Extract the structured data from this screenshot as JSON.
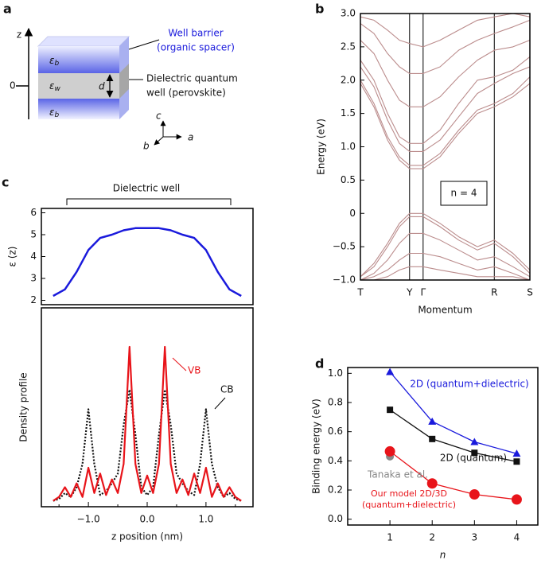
{
  "diagram": {
    "panel": "a",
    "z_axis": "z",
    "origin": "0",
    "layers": [
      {
        "symbol": "ε",
        "sub": "b"
      },
      {
        "symbol": "ε",
        "sub": "w"
      },
      {
        "symbol": "ε",
        "sub": "b"
      }
    ],
    "thickness": "d",
    "barrier_label": [
      "Well barrier",
      "(organic spacer)"
    ],
    "well_label": [
      "Dielectric quantum",
      "well (perovskite)"
    ],
    "axes": [
      "c",
      "b",
      "a"
    ]
  },
  "chart_data": [
    {
      "type": "line",
      "panel": "b",
      "xlabel": "Momentum",
      "ylabel": "Energy (eV)",
      "annotation": "n = 4",
      "color": "#bb8c8c",
      "grid": "x",
      "xlim": [
        0,
        1
      ],
      "xticks": [
        {
          "value": 0,
          "label": "T"
        },
        {
          "value": 0.29,
          "label": "Y"
        },
        {
          "value": 0.37,
          "label": "Γ"
        },
        {
          "value": 0.79,
          "label": "R"
        },
        {
          "value": 1,
          "label": "S"
        }
      ],
      "ylim": [
        -1,
        3
      ],
      "yticks": [
        {
          "value": -1,
          "label": "−1.0"
        },
        {
          "value": -0.5,
          "label": "−0.5"
        },
        0,
        0.5,
        {
          "value": 1,
          "label": "1.0"
        },
        1.5,
        {
          "value": 2,
          "label": "2.0"
        },
        2.5,
        {
          "value": 3,
          "label": "3.0"
        }
      ],
      "x": [
        0,
        0.08,
        0.16,
        0.23,
        0.29,
        0.37,
        0.47,
        0.58,
        0.69,
        0.79,
        0.9,
        1
      ],
      "series": [
        {
          "values": [
            1.95,
            1.6,
            1.1,
            0.8,
            0.67,
            0.67,
            0.85,
            1.2,
            1.5,
            1.6,
            1.75,
            1.95
          ]
        },
        {
          "values": [
            2.0,
            1.65,
            1.15,
            0.85,
            0.72,
            0.72,
            0.9,
            1.25,
            1.55,
            1.65,
            1.8,
            2.05
          ]
        },
        {
          "values": [
            2.2,
            1.9,
            1.4,
            1.05,
            0.93,
            0.93,
            1.1,
            1.45,
            1.8,
            1.95,
            2.1,
            2.2
          ]
        },
        {
          "values": [
            2.3,
            2.0,
            1.5,
            1.15,
            1.05,
            1.05,
            1.25,
            1.65,
            2.0,
            2.05,
            2.15,
            2.35
          ]
        },
        {
          "values": [
            2.6,
            2.4,
            2.0,
            1.7,
            1.6,
            1.6,
            1.75,
            2.05,
            2.3,
            2.45,
            2.5,
            2.6
          ]
        },
        {
          "values": [
            2.85,
            2.7,
            2.4,
            2.2,
            2.1,
            2.1,
            2.2,
            2.45,
            2.6,
            2.7,
            2.8,
            2.9
          ]
        },
        {
          "values": [
            2.95,
            2.9,
            2.75,
            2.6,
            2.55,
            2.5,
            2.6,
            2.75,
            2.9,
            2.95,
            3.0,
            2.95
          ]
        },
        {
          "values": [
            -0.95,
            -0.75,
            -0.45,
            -0.15,
            0,
            0,
            -0.15,
            -0.35,
            -0.5,
            -0.4,
            -0.6,
            -0.85
          ]
        },
        {
          "values": [
            -0.95,
            -0.8,
            -0.5,
            -0.2,
            -0.05,
            -0.05,
            -0.2,
            -0.4,
            -0.55,
            -0.45,
            -0.65,
            -0.9
          ]
        },
        {
          "values": [
            -1.0,
            -0.9,
            -0.7,
            -0.45,
            -0.3,
            -0.3,
            -0.4,
            -0.55,
            -0.7,
            -0.65,
            -0.8,
            -0.95
          ]
        },
        {
          "values": [
            -1.0,
            -0.95,
            -0.85,
            -0.7,
            -0.6,
            -0.6,
            -0.65,
            -0.75,
            -0.85,
            -0.8,
            -0.9,
            -1.0
          ]
        },
        {
          "values": [
            -1.0,
            -1.0,
            -0.95,
            -0.85,
            -0.8,
            -0.8,
            -0.85,
            -0.9,
            -0.95,
            -0.95,
            -0.95,
            -1.0
          ]
        }
      ]
    },
    {
      "type": "line",
      "panel": "c",
      "ylabel": "ε (z)",
      "annotation": "Dielectric well",
      "xlim": [
        -1.8,
        1.8
      ],
      "ylim": [
        1.8,
        6.2
      ],
      "yticks": [
        2,
        3,
        4,
        5,
        6
      ],
      "x": [
        -1.6,
        -1.4,
        -1.2,
        -1.0,
        -0.8,
        -0.6,
        -0.4,
        -0.2,
        0,
        0.2,
        0.4,
        0.6,
        0.8,
        1.0,
        1.2,
        1.4,
        1.6
      ],
      "series": [
        {
          "color": "#1a1adc",
          "values": [
            2.2,
            2.5,
            3.3,
            4.3,
            4.85,
            5.0,
            5.2,
            5.3,
            5.3,
            5.3,
            5.2,
            5.0,
            4.85,
            4.3,
            3.3,
            2.5,
            2.2
          ]
        }
      ]
    },
    {
      "type": "line",
      "xlabel": "z position (nm)",
      "ylabel": "Density profile",
      "xlim": [
        -1.8,
        1.8
      ],
      "ylim": [
        -0.02,
        1
      ],
      "xticks": [
        {
          "value": -1,
          "label": "−1.0"
        },
        {
          "value": 0,
          "label": "0.0"
        },
        {
          "value": 1,
          "label": "1.0"
        }
      ],
      "xminor_ticks": [
        -1.5,
        -0.5,
        0.5,
        1.5
      ],
      "x": [
        -1.6,
        -1.5,
        -1.4,
        -1.3,
        -1.2,
        -1.1,
        -1.0,
        -0.9,
        -0.8,
        -0.7,
        -0.6,
        -0.5,
        -0.4,
        -0.3,
        -0.2,
        -0.1,
        0,
        0.1,
        0.2,
        0.3,
        0.4,
        0.5,
        0.6,
        0.7,
        0.8,
        0.9,
        1.0,
        1.1,
        1.2,
        1.3,
        1.4,
        1.5,
        1.6
      ],
      "series": [
        {
          "name": "CB",
          "color": "#111111",
          "dash": true,
          "values": [
            0.01,
            0.02,
            0.05,
            0.03,
            0.08,
            0.2,
            0.48,
            0.2,
            0.04,
            0.06,
            0.1,
            0.15,
            0.4,
            0.58,
            0.35,
            0.08,
            0.04,
            0.08,
            0.35,
            0.58,
            0.4,
            0.15,
            0.1,
            0.06,
            0.04,
            0.2,
            0.48,
            0.2,
            0.08,
            0.03,
            0.05,
            0.02,
            0.01
          ]
        },
        {
          "name": "VB",
          "color": "#e8141a",
          "values": [
            0.01,
            0.03,
            0.08,
            0.03,
            0.1,
            0.03,
            0.18,
            0.05,
            0.15,
            0.04,
            0.12,
            0.05,
            0.2,
            0.8,
            0.2,
            0.05,
            0.14,
            0.05,
            0.2,
            0.8,
            0.2,
            0.05,
            0.12,
            0.04,
            0.15,
            0.05,
            0.18,
            0.03,
            0.1,
            0.03,
            0.08,
            0.03,
            0.01
          ]
        }
      ]
    },
    {
      "type": "line",
      "panel": "d",
      "xlabel": "n",
      "ylabel": "Binding energy (eV)",
      "xlim": [
        0,
        4.5
      ],
      "xticks": [
        1,
        2,
        3,
        4
      ],
      "ylim": [
        -0.04,
        1.04
      ],
      "yticks": [
        {
          "value": 0,
          "label": "0.0"
        },
        0.2,
        0.4,
        0.6,
        0.8,
        {
          "value": 1,
          "label": "1.0"
        }
      ],
      "x": [
        1,
        2,
        3,
        4
      ],
      "series": [
        {
          "name": "2D (quantum+dielectric)",
          "color": "#1a1adc",
          "marker": "triangle",
          "values": [
            1.01,
            0.67,
            0.53,
            0.45
          ]
        },
        {
          "name": "2D (quantum)",
          "color": "#111111",
          "marker": "square",
          "values": [
            0.75,
            0.55,
            0.455,
            0.395
          ]
        },
        {
          "name": "Tanaka et al.",
          "color": "#888888",
          "marker": "circle",
          "line": false,
          "values": [
            0.43,
            null,
            null,
            null
          ]
        },
        {
          "name": "Our model 2D/3D (quantum+dielectric)",
          "color": "#e8141a",
          "marker": "bigcircle",
          "values": [
            0.465,
            0.245,
            0.17,
            0.135
          ]
        }
      ]
    }
  ]
}
